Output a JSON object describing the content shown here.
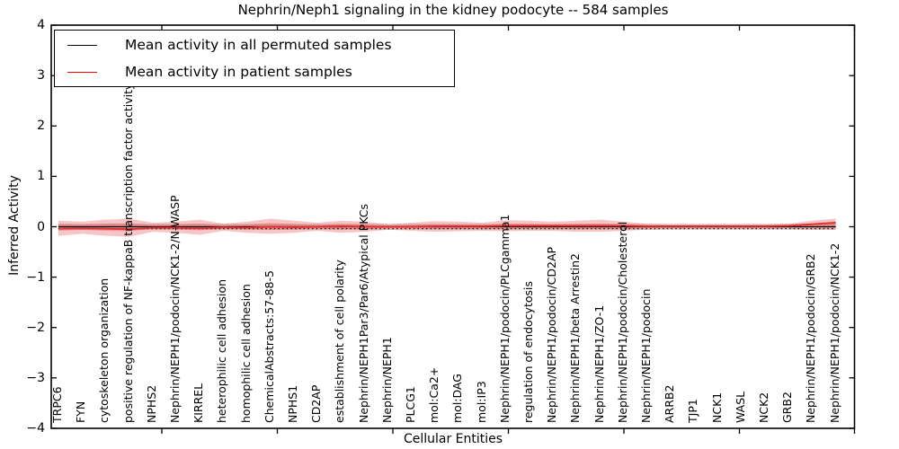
{
  "title": "Nephrin/Neph1 signaling in the kidney podocyte -- 584 samples",
  "axes": {
    "ylabel": "Inferred Activity",
    "xlabel": "Cellular Entities",
    "ytick_labels": [
      "4",
      "3",
      "2",
      "1",
      "0",
      "−1",
      "−2",
      "−3",
      "−4"
    ]
  },
  "legend": {
    "items": [
      {
        "label": "Mean activity in all permuted samples",
        "color": "#000000"
      },
      {
        "label": "Mean activity in patient samples",
        "color": "#ff0000"
      }
    ]
  },
  "chart_data": {
    "type": "line",
    "title": "Nephrin/Neph1 signaling in the kidney podocyte -- 584 samples",
    "xlabel": "Cellular Entities",
    "ylabel": "Inferred Activity",
    "ylim": [
      -4,
      4
    ],
    "yticks": [
      4,
      3,
      2,
      1,
      0,
      -1,
      -2,
      -3,
      -4
    ],
    "grid": false,
    "legend_position": "upper left",
    "categories": [
      "TRPC6",
      "FYN",
      "cytoskeleton organization",
      "positive regulation of NF-kappaB transcription factor activity",
      "NPHS2",
      "Nephrin/NEPH1/podocin/NCK1-2/N-WASP",
      "KIRREL",
      "heterophilic cell adhesion",
      "homophilic cell adhesion",
      "ChemicalAbstracts:57-88-5",
      "NPHS1",
      "CD2AP",
      "establishment of cell polarity",
      "Nephrin/NEPH1Par3/Par6/Atypical PKCs",
      "Nephrin/NEPH1",
      "PLCG1",
      "mol:Ca2+",
      "mol:DAG",
      "mol:IP3",
      "Nephrin/NEPH1/podocin/PLCgamma1",
      "regulation of endocytosis",
      "Nephrin/NEPH1/podocin/CD2AP",
      "Nephrin/NEPH1/beta Arrestin2",
      "Nephrin/NEPH1/ZO-1",
      "Nephrin/NEPH1/podocin/Cholesterol",
      "Nephrin/NEPH1/podocin",
      "ARRB2",
      "TJP1",
      "NCK1",
      "WASL",
      "NCK2",
      "GRB2",
      "Nephrin/NEPH1/podocin/GRB2",
      "Nephrin/NEPH1/podocin/NCK1-2"
    ],
    "series": [
      {
        "name": "Mean activity in all permuted samples",
        "color": "#000000",
        "style": "solid",
        "values": [
          0,
          0,
          0,
          0,
          0,
          0,
          0,
          0,
          0,
          0,
          0,
          0,
          0,
          0,
          0,
          0,
          0,
          0,
          0,
          0,
          0,
          0,
          0,
          0,
          0,
          0,
          0,
          0,
          0,
          0,
          0,
          0,
          0,
          0
        ]
      },
      {
        "name": "Mean activity in patient samples",
        "color": "#e03030",
        "style": "solid",
        "values": [
          -0.04,
          -0.03,
          -0.04,
          -0.05,
          -0.02,
          -0.02,
          -0.03,
          -0.01,
          -0.02,
          0.0,
          -0.01,
          0.0,
          0.01,
          0.0,
          0.0,
          0.0,
          0.01,
          0.01,
          0.01,
          0.02,
          0.02,
          0.02,
          0.02,
          0.02,
          0.02,
          0.01,
          0.01,
          0.01,
          0.01,
          0.01,
          0.01,
          0.02,
          0.05,
          0.08
        ]
      },
      {
        "name": "permuted reference (dotted)",
        "color": "#000000",
        "style": "dotted",
        "values": [
          -0.04,
          -0.04,
          -0.04,
          -0.04,
          -0.04,
          -0.04,
          -0.04,
          -0.04,
          -0.04,
          -0.04,
          -0.04,
          -0.04,
          -0.04,
          -0.04,
          -0.04,
          -0.04,
          -0.04,
          -0.04,
          -0.04,
          -0.04,
          -0.04,
          -0.04,
          -0.04,
          -0.04,
          -0.04,
          -0.04,
          -0.04,
          -0.04,
          -0.04,
          -0.04,
          -0.04,
          -0.04,
          -0.04,
          -0.04
        ]
      }
    ],
    "bands": [
      {
        "name": "patient sample activity spread",
        "color": "#e03030",
        "opacity": 0.28,
        "upper": [
          0.12,
          0.1,
          0.14,
          0.16,
          0.08,
          0.1,
          0.14,
          0.06,
          0.1,
          0.16,
          0.12,
          0.08,
          0.12,
          0.1,
          0.05,
          0.08,
          0.11,
          0.1,
          0.08,
          0.13,
          0.12,
          0.1,
          0.12,
          0.14,
          0.1,
          0.06,
          0.05,
          0.05,
          0.05,
          0.05,
          0.05,
          0.06,
          0.12,
          0.16
        ],
        "lower": [
          -0.18,
          -0.14,
          -0.18,
          -0.2,
          -0.1,
          -0.12,
          -0.16,
          -0.08,
          -0.12,
          -0.14,
          -0.12,
          -0.08,
          -0.12,
          -0.1,
          -0.06,
          -0.08,
          -0.1,
          -0.09,
          -0.08,
          -0.09,
          -0.08,
          -0.08,
          -0.1,
          -0.1,
          -0.08,
          -0.06,
          -0.05,
          -0.05,
          -0.05,
          -0.05,
          -0.05,
          -0.05,
          -0.06,
          -0.06
        ]
      },
      {
        "name": "permuted sample activity spread",
        "color": "#999999",
        "opacity": 0.3,
        "upper": [
          0.06,
          0.06,
          0.06,
          0.06,
          0.06,
          0.06,
          0.06,
          0.06,
          0.06,
          0.06,
          0.06,
          0.06,
          0.06,
          0.06,
          0.06,
          0.06,
          0.06,
          0.06,
          0.06,
          0.06,
          0.06,
          0.06,
          0.06,
          0.06,
          0.06,
          0.06,
          0.06,
          0.06,
          0.06,
          0.06,
          0.06,
          0.06,
          0.06,
          0.06
        ],
        "lower": [
          -0.06,
          -0.06,
          -0.06,
          -0.06,
          -0.06,
          -0.06,
          -0.06,
          -0.06,
          -0.06,
          -0.06,
          -0.06,
          -0.06,
          -0.06,
          -0.06,
          -0.06,
          -0.06,
          -0.06,
          -0.06,
          -0.06,
          -0.06,
          -0.06,
          -0.06,
          -0.06,
          -0.06,
          -0.06,
          -0.06,
          -0.06,
          -0.06,
          -0.06,
          -0.06,
          -0.06,
          -0.06,
          -0.06,
          -0.06
        ]
      }
    ]
  }
}
